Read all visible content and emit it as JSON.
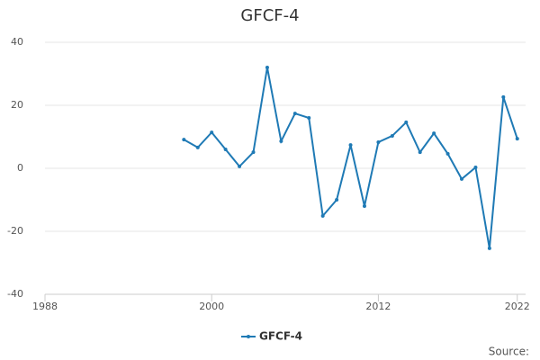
{
  "chart_data": {
    "type": "line",
    "title": "GFCF-4",
    "x": [
      1998,
      1999,
      2000,
      2001,
      2002,
      2003,
      2004,
      2005,
      2006,
      2007,
      2008,
      2009,
      2010,
      2011,
      2012,
      2013,
      2014,
      2015,
      2016,
      2017,
      2018,
      2019,
      2020,
      2021,
      2022
    ],
    "series": [
      {
        "name": "GFCF-4",
        "color": "#1f7ab5",
        "values": [
          9.1,
          6.6,
          11.4,
          6,
          0.6,
          5.1,
          32,
          8.6,
          17.4,
          16,
          -15.1,
          -10,
          7.4,
          -12,
          8.3,
          10.3,
          14.6,
          5.1,
          11.1,
          4.6,
          -3.4,
          0.3,
          -25.4,
          22.6,
          9.4
        ]
      }
    ],
    "xlim": [
      1988,
      2022.6
    ],
    "xticks": [
      1988,
      2000,
      2012,
      2022
    ],
    "ylim": [
      -40,
      40
    ],
    "yticks": [
      -40,
      -20,
      0,
      20,
      40
    ],
    "grid": true,
    "legend": "bottom",
    "source": "Source:"
  }
}
